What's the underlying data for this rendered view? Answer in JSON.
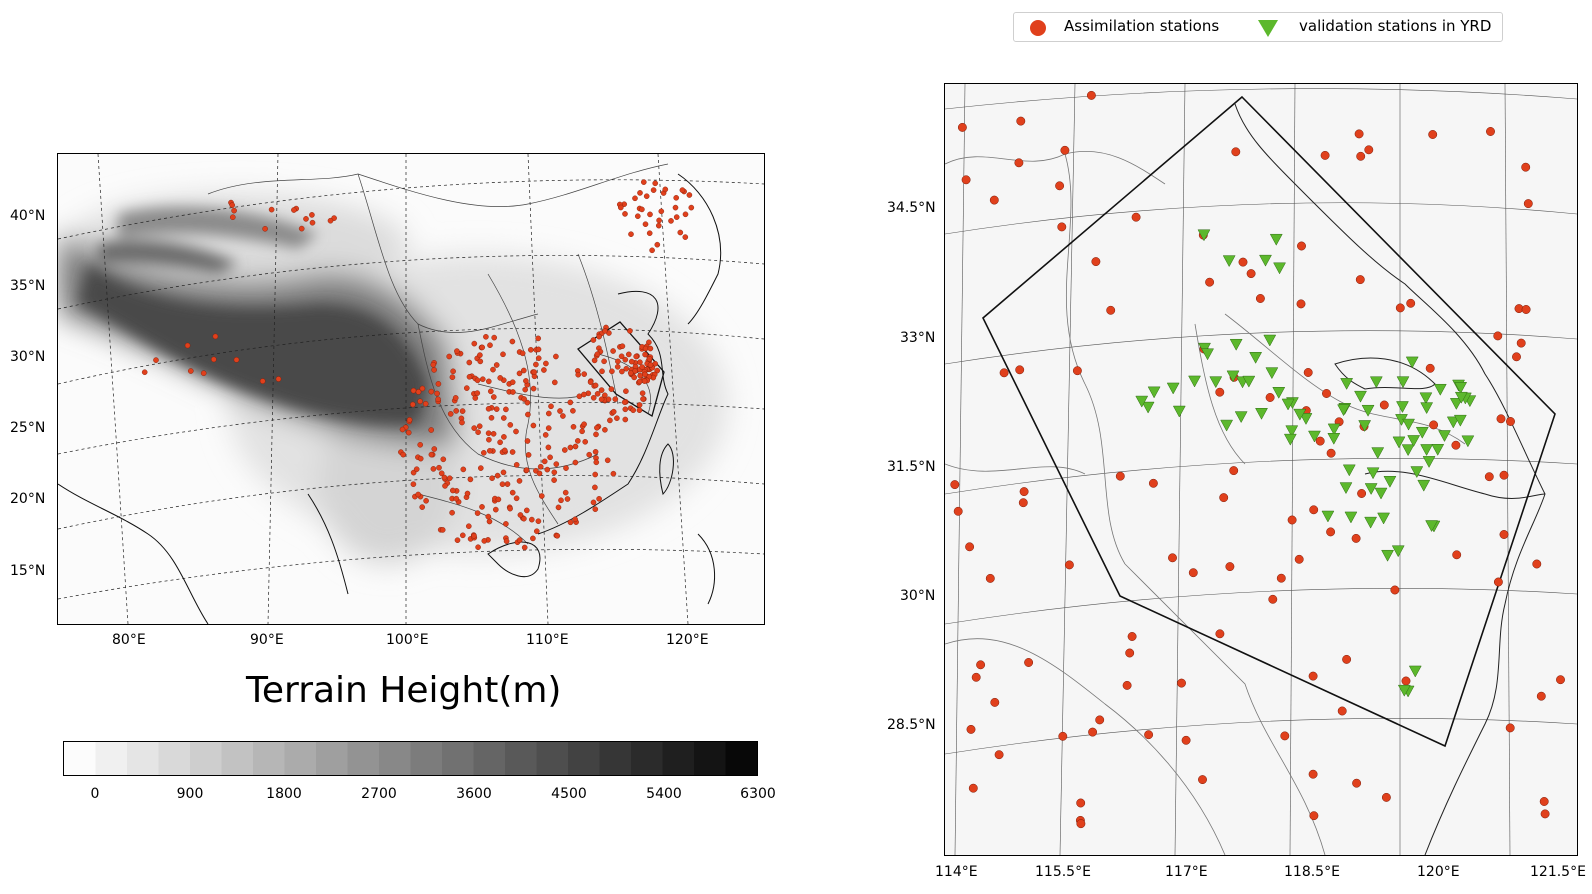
{
  "left_map": {
    "lat_labels": [
      "40°N",
      "35°N",
      "30°N",
      "25°N",
      "20°N",
      "15°N"
    ],
    "lon_labels": [
      "80°E",
      "90°E",
      "100°E",
      "110°E",
      "120°E"
    ]
  },
  "colorbar": {
    "title": "Terrain Height(m)",
    "labels": [
      "0",
      "900",
      "1800",
      "2700",
      "3600",
      "4500",
      "5400",
      "6300"
    ],
    "min": 0,
    "max": 6300
  },
  "right_map": {
    "lat_labels": [
      "34.5°N",
      "33°N",
      "31.5°N",
      "30°N",
      "28.5°N"
    ],
    "lon_labels": [
      "114°E",
      "115.5°E",
      "117°E",
      "118.5°E",
      "120°E",
      "121.5°E"
    ]
  },
  "legend": {
    "assimilation_label": "Assimilation stations",
    "validation_label": "validation stations in YRD",
    "assimilation_color": "#e0401c",
    "validation_color": "#5cb82c"
  }
}
